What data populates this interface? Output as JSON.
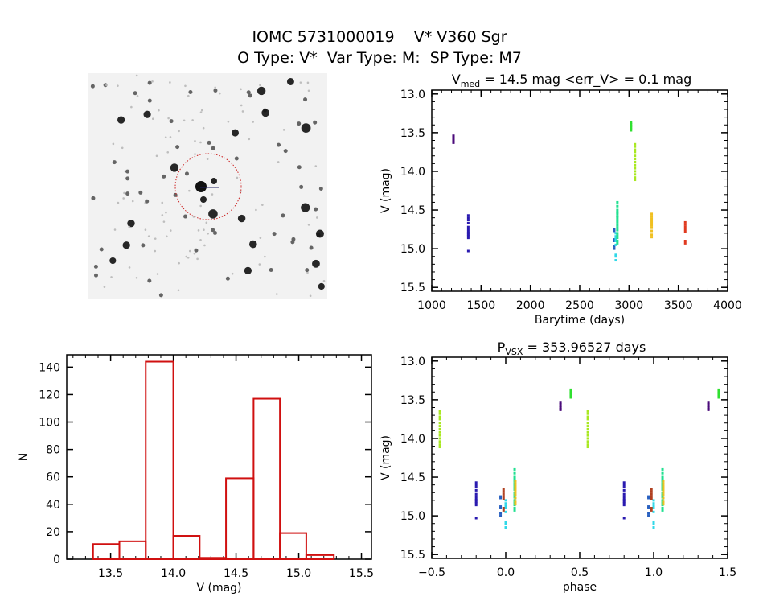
{
  "header": {
    "title": "IOMC 5731000019    V* V360 Sgr",
    "subtitle": "O Type: V*  Var Type: M:  SP Type: M7"
  },
  "finder_chart": {
    "circle_color": "#cc2222",
    "image": "grayscale-star-field"
  },
  "chart_data": [
    {
      "type": "scatter",
      "title_main": "V",
      "title_sub": "med",
      "title_rest": " = 14.5 mag <err_V> = 0.1 mag",
      "xlabel": "Barytime (days)",
      "ylabel": "V (mag)",
      "xlim": [
        1000,
        4000
      ],
      "ylim": [
        12.95,
        15.55
      ],
      "y_inverted": true,
      "x_ticks": [
        "1000",
        "1500",
        "2000",
        "2500",
        "3000",
        "3500",
        "4000"
      ],
      "y_ticks": [
        "13.0",
        "13.5",
        "14.0",
        "14.5",
        "15.0",
        "15.5"
      ],
      "series": [
        {
          "color": "#4a0a7a",
          "t": 1220,
          "mag": [
            13.54,
            13.56,
            13.58,
            13.6,
            13.62,
            13.63
          ]
        },
        {
          "color": "#2a1ab0",
          "t": 1370,
          "mag": [
            14.57,
            14.6,
            14.63,
            14.67,
            14.72,
            14.75,
            14.78,
            14.8,
            14.82,
            14.84,
            14.86,
            15.03
          ]
        },
        {
          "color": "#2860c0",
          "t": 2850,
          "mag": [
            14.75,
            14.77,
            14.88,
            14.9,
            14.97,
            15.0
          ]
        },
        {
          "color": "#30d8e8",
          "t": 2866,
          "mag": [
            14.8,
            14.84,
            14.87,
            14.9,
            14.95,
            15.08,
            15.1,
            15.15
          ]
        },
        {
          "color": "#20e090",
          "t": 2882,
          "mag": [
            14.4,
            14.45,
            14.5,
            14.53,
            14.55,
            14.58,
            14.6,
            14.63,
            14.66,
            14.7,
            14.73,
            14.76,
            14.8,
            14.83,
            14.86,
            14.9,
            14.93
          ]
        },
        {
          "color": "#30e030",
          "t": 3020,
          "mag": [
            13.37,
            13.39,
            13.41,
            13.43,
            13.45,
            13.47
          ]
        },
        {
          "color": "#a8e820",
          "t": 3060,
          "mag": [
            13.65,
            13.68,
            13.72,
            13.75,
            13.8,
            13.84,
            13.88,
            13.92,
            13.96,
            14.0,
            14.04,
            14.08,
            14.11
          ]
        },
        {
          "color": "#f0c020",
          "t": 3230,
          "mag": [
            14.55,
            14.58,
            14.61,
            14.64,
            14.67,
            14.7,
            14.73,
            14.77,
            14.82,
            14.85
          ]
        },
        {
          "color": "#e03a20",
          "t": 3570,
          "mag": [
            14.66,
            14.69,
            14.72,
            14.75,
            14.78,
            14.9,
            14.93
          ]
        }
      ]
    },
    {
      "type": "bar",
      "xlabel": "V (mag)",
      "ylabel": "N",
      "xlim": [
        13.15,
        15.58
      ],
      "ylim": [
        0,
        149
      ],
      "x_ticks": [
        "13.5",
        "14.0",
        "14.5",
        "15.0",
        "15.5"
      ],
      "y_ticks": [
        "0",
        "20",
        "40",
        "60",
        "80",
        "100",
        "120",
        "140"
      ],
      "bar_color": "#d01010",
      "bin_edges": [
        13.36,
        13.57,
        13.78,
        14.0,
        14.21,
        14.42,
        14.64,
        14.85,
        15.06,
        15.28
      ],
      "values": [
        11,
        13,
        144,
        17,
        1,
        59,
        117,
        19,
        3
      ]
    },
    {
      "type": "scatter",
      "title_main": "P",
      "title_sub": "VSX",
      "title_rest": " = 353.96527 days",
      "xlabel": "phase",
      "ylabel": "V (mag)",
      "xlim": [
        -0.5,
        1.5
      ],
      "ylim": [
        12.95,
        15.55
      ],
      "y_inverted": true,
      "phase_repeated": true,
      "x_ticks": [
        "-0.5",
        "0.0",
        "0.5",
        "1.0",
        "1.5"
      ],
      "y_ticks": [
        "13.0",
        "13.5",
        "14.0",
        "14.5",
        "15.0",
        "15.5"
      ],
      "series": [
        {
          "color": "#4a0a7a",
          "phase": 0.37,
          "mag": [
            13.54,
            13.56,
            13.58,
            13.6,
            13.62,
            13.63
          ]
        },
        {
          "color": "#2a1ab0",
          "phase": 0.8,
          "mag": [
            14.57,
            14.6,
            14.63,
            14.67,
            14.72,
            14.75,
            14.78,
            14.8,
            14.82,
            14.84,
            14.86,
            15.03
          ]
        },
        {
          "color": "#2860c0",
          "phase": 0.965,
          "mag": [
            14.75,
            14.77,
            14.88,
            14.9,
            14.97,
            15.0
          ]
        },
        {
          "color": "#30d8e8",
          "phase": 0.0,
          "mag": [
            14.8,
            14.84,
            14.87,
            14.9,
            14.95,
            15.08,
            15.1,
            15.15
          ]
        },
        {
          "color": "#20e090",
          "phase": 0.06,
          "mag": [
            14.4,
            14.45,
            14.5,
            14.53,
            14.55,
            14.58,
            14.6,
            14.63,
            14.66,
            14.7,
            14.73,
            14.76,
            14.8,
            14.83,
            14.86,
            14.9,
            14.93
          ]
        },
        {
          "color": "#30e030",
          "phase": 0.44,
          "mag": [
            13.37,
            13.39,
            13.41,
            13.43,
            13.45,
            13.47
          ]
        },
        {
          "color": "#a8e820",
          "phase": 0.555,
          "mag": [
            13.65,
            13.68,
            13.72,
            13.75,
            13.8,
            13.84,
            13.88,
            13.92,
            13.96,
            14.0,
            14.04,
            14.08,
            14.11
          ]
        },
        {
          "color": "#f0c020",
          "phase": 0.065,
          "mag": [
            14.55,
            14.58,
            14.61,
            14.64,
            14.67,
            14.7,
            14.73,
            14.77,
            14.82,
            14.85
          ]
        },
        {
          "color": "#b04020",
          "phase": 0.985,
          "mag": [
            14.66,
            14.69,
            14.72,
            14.75,
            14.78,
            14.9,
            14.93
          ]
        }
      ]
    }
  ]
}
